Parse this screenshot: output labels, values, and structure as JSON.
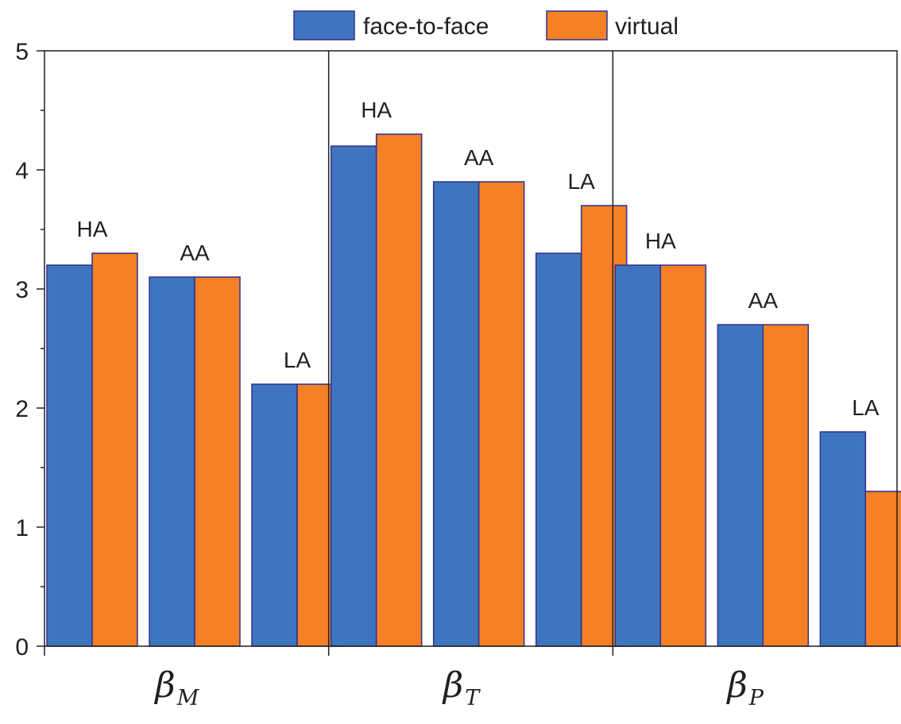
{
  "chart_data": {
    "type": "bar",
    "ylim": [
      0,
      5
    ],
    "yticks": [
      "0",
      "1",
      "2",
      "3",
      "4",
      "5"
    ],
    "colors": {
      "face_to_face": "#3f75be",
      "virtual": "#f58025",
      "outline": "#2e3192",
      "axis": "#231f20"
    },
    "legend": {
      "position": "top",
      "items": [
        {
          "key": "face_to_face",
          "label": "face-to-face"
        },
        {
          "key": "virtual",
          "label": "virtual"
        }
      ]
    },
    "groups": [
      {
        "symbol": "β",
        "subscript": "M",
        "bars": [
          {
            "label": "HA",
            "face_to_face": 3.2,
            "virtual": 3.3
          },
          {
            "label": "AA",
            "face_to_face": 3.1,
            "virtual": 3.1
          },
          {
            "label": "LA",
            "face_to_face": 2.2,
            "virtual": 2.2
          }
        ]
      },
      {
        "symbol": "β",
        "subscript": "T",
        "bars": [
          {
            "label": "HA",
            "face_to_face": 4.2,
            "virtual": 4.3
          },
          {
            "label": "AA",
            "face_to_face": 3.9,
            "virtual": 3.9
          },
          {
            "label": "LA",
            "face_to_face": 3.3,
            "virtual": 3.7
          }
        ]
      },
      {
        "symbol": "β",
        "subscript": "P",
        "bars": [
          {
            "label": "HA",
            "face_to_face": 3.2,
            "virtual": 3.2
          },
          {
            "label": "AA",
            "face_to_face": 2.7,
            "virtual": 2.7
          },
          {
            "label": "LA",
            "face_to_face": 1.8,
            "virtual": 1.3
          }
        ]
      }
    ]
  }
}
